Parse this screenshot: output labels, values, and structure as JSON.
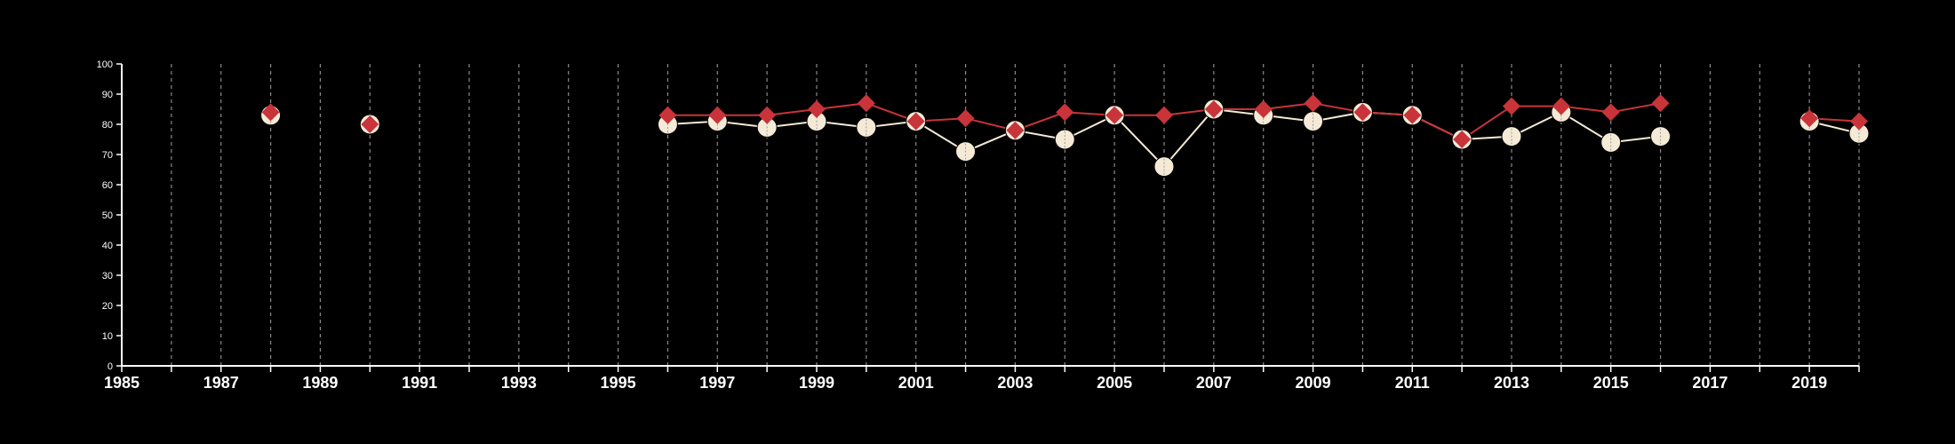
{
  "chart_data": {
    "type": "line",
    "title": "",
    "xlabel": "",
    "ylabel": "",
    "xlim": [
      1985,
      2020
    ],
    "ylim": [
      0,
      100
    ],
    "x_ticks": [
      1985,
      1987,
      1989,
      1991,
      1993,
      1995,
      1997,
      1999,
      2001,
      2003,
      2005,
      2007,
      2009,
      2011,
      2013,
      2015,
      2017,
      2019
    ],
    "y_ticks": [
      0,
      10,
      20,
      30,
      40,
      50,
      60,
      70,
      80,
      90,
      100
    ],
    "vertical_gridlines": "dashed, every year",
    "colors": {
      "background": "#000000",
      "axis": "#ffffff",
      "grid": "#8a8a8a",
      "series_red": "#c8343a",
      "series_cream": "#f4ead6"
    },
    "series": [
      {
        "marker": "circle",
        "color": "#f4ead6",
        "points": [
          [
            1988,
            83
          ],
          [
            1990,
            80
          ],
          [
            1996,
            80
          ],
          [
            1997,
            81
          ],
          [
            1998,
            79
          ],
          [
            1999,
            81
          ],
          [
            2000,
            79
          ],
          [
            2001,
            81
          ],
          [
            2002,
            71
          ],
          [
            2003,
            78
          ],
          [
            2004,
            75
          ],
          [
            2005,
            83
          ],
          [
            2006,
            66
          ],
          [
            2007,
            85
          ],
          [
            2008,
            83
          ],
          [
            2009,
            81
          ],
          [
            2010,
            84
          ],
          [
            2011,
            83
          ],
          [
            2012,
            75
          ],
          [
            2013,
            76
          ],
          [
            2014,
            84
          ],
          [
            2015,
            74
          ],
          [
            2016,
            76
          ],
          [
            2019,
            81
          ],
          [
            2020,
            77
          ]
        ]
      },
      {
        "marker": "diamond",
        "color": "#c8343a",
        "points": [
          [
            1988,
            84
          ],
          [
            1990,
            80
          ],
          [
            1996,
            83
          ],
          [
            1997,
            83
          ],
          [
            1998,
            83
          ],
          [
            1999,
            85
          ],
          [
            2000,
            87
          ],
          [
            2001,
            81
          ],
          [
            2002,
            82
          ],
          [
            2003,
            78
          ],
          [
            2004,
            84
          ],
          [
            2005,
            83
          ],
          [
            2006,
            83
          ],
          [
            2007,
            85
          ],
          [
            2008,
            85
          ],
          [
            2009,
            87
          ],
          [
            2010,
            84
          ],
          [
            2011,
            83
          ],
          [
            2012,
            75
          ],
          [
            2013,
            86
          ],
          [
            2014,
            86
          ],
          [
            2015,
            84
          ],
          [
            2016,
            87
          ],
          [
            2019,
            82
          ],
          [
            2020,
            81
          ]
        ]
      }
    ]
  }
}
